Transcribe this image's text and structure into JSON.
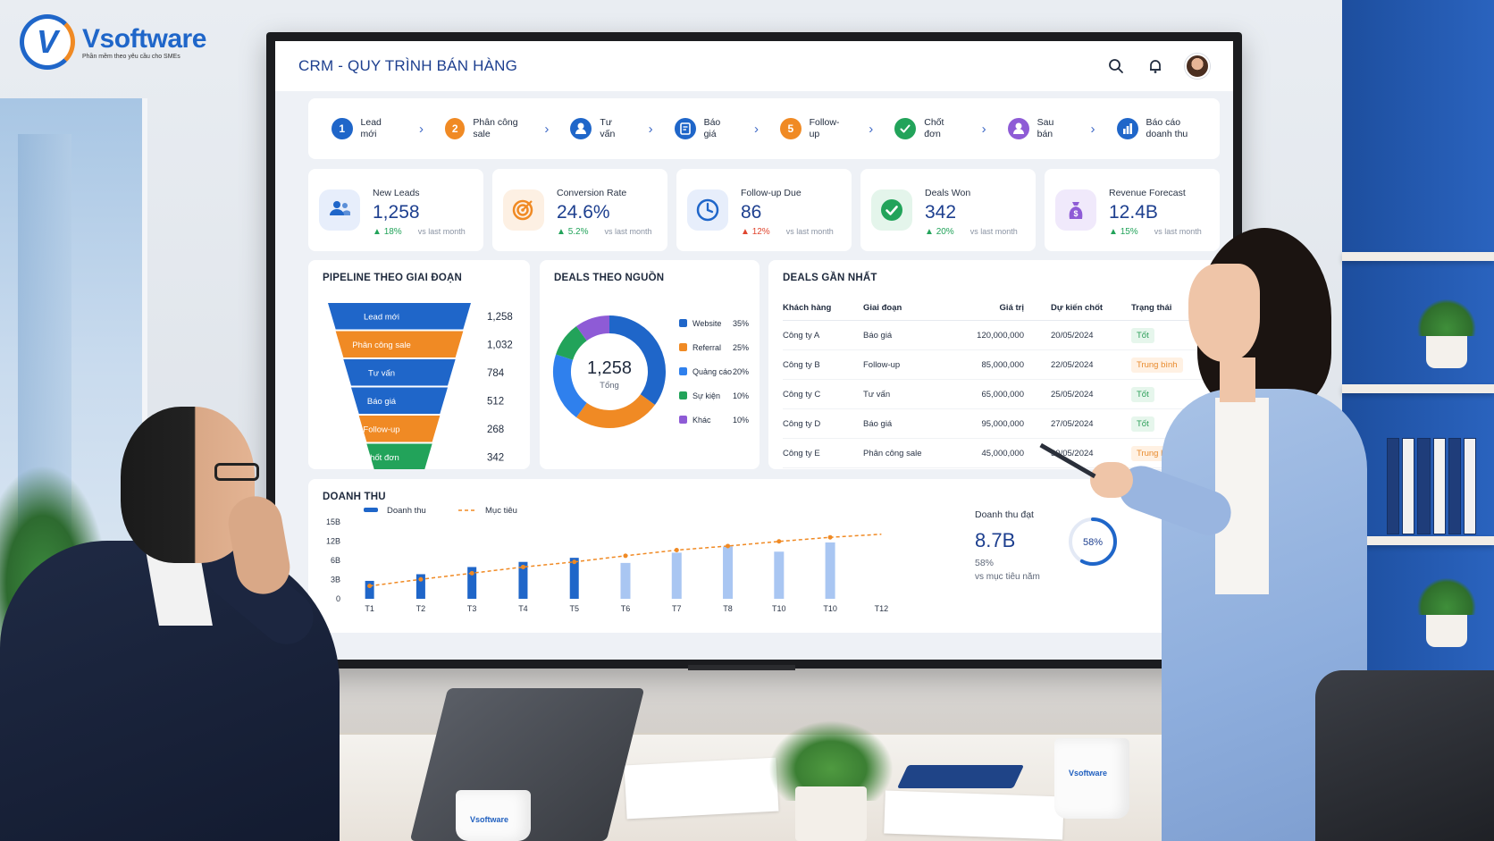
{
  "brand": {
    "name": "Vsoftware",
    "tagline": "Phần mềm theo yêu cầu cho SMEs",
    "mug_logo": "Vsoftware"
  },
  "header": {
    "title": "CRM  - QUY TRÌNH BÁN HÀNG",
    "icons": [
      "search-icon",
      "bell-icon",
      "user-avatar"
    ]
  },
  "steps": [
    {
      "badge": "1",
      "label": "Lead mới",
      "color": "#1f66c9",
      "icon": "number"
    },
    {
      "badge": "2",
      "label": "Phân công sale",
      "color": "#f08a24",
      "icon": "number"
    },
    {
      "badge": "",
      "label": "Tư vấn",
      "color": "#1f66c9",
      "icon": "person-icon"
    },
    {
      "badge": "",
      "label": "Báo giá",
      "color": "#1f66c9",
      "icon": "quote-icon"
    },
    {
      "badge": "5",
      "label": "Follow-up",
      "color": "#f08a24",
      "icon": "number"
    },
    {
      "badge": "",
      "label": "Chốt đơn",
      "color": "#22a35a",
      "icon": "check-icon"
    },
    {
      "badge": "",
      "label": "Sau bán",
      "color": "#8e5bd6",
      "icon": "person-icon"
    },
    {
      "badge": "",
      "label": "Báo cáo doanh thu",
      "color": "#1f66c9",
      "icon": "bar-chart-icon"
    }
  ],
  "kpis": [
    {
      "label": "New Leads",
      "value": "1,258",
      "delta": "18%",
      "direction": "up",
      "note": "vs last month",
      "icon": "users-icon",
      "color": "#1f66c9",
      "bg": "#e7eefb"
    },
    {
      "label": "Conversion Rate",
      "value": "24.6%",
      "delta": "5.2%",
      "direction": "up",
      "note": "vs last month",
      "icon": "target-icon",
      "color": "#f08a24",
      "bg": "#fdf0e3"
    },
    {
      "label": "Follow-up Due",
      "value": "86",
      "delta": "12%",
      "direction": "down",
      "note": "vs last month",
      "icon": "clock-icon",
      "color": "#1f66c9",
      "bg": "#e7eefb"
    },
    {
      "label": "Deals Won",
      "value": "342",
      "delta": "20%",
      "direction": "up",
      "note": "vs last month",
      "icon": "check-circle-icon",
      "color": "#22a35a",
      "bg": "#e4f5eb"
    },
    {
      "label": "Revenue Forecast",
      "value": "12.4B",
      "delta": "15%",
      "direction": "up",
      "note": "vs last month",
      "icon": "money-bag-icon",
      "color": "#8e5bd6",
      "bg": "#f0e9fb"
    }
  ],
  "pipeline": {
    "title": "PIPELINE THEO GIAI ĐOẠN",
    "chart_data": {
      "type": "bar",
      "categories": [
        "Lead mới",
        "Phân công sale",
        "Tư vấn",
        "Báo giá",
        "Follow-up",
        "Chốt đơn"
      ],
      "values": [
        1258,
        1032,
        784,
        512,
        268,
        342
      ],
      "value_labels": [
        "1,258",
        "1,032",
        "784",
        "512",
        "268",
        "342"
      ],
      "colors": [
        "#1f66c9",
        "#f08a24",
        "#1f66c9",
        "#1f66c9",
        "#f08a24",
        "#22a35a"
      ],
      "style": "funnel"
    }
  },
  "deals_source": {
    "title": "DEALS THEO NGUỒN",
    "center_value": "1,258",
    "center_label": "Tổng",
    "chart_data": {
      "type": "pie",
      "style": "donut",
      "categories": [
        "Website",
        "Referral",
        "Quảng cáo",
        "Sự kiện",
        "Khác"
      ],
      "values": [
        35,
        25,
        20,
        10,
        10
      ],
      "labels": [
        "35%",
        "25%",
        "20%",
        "10%",
        "10%"
      ],
      "colors": [
        "#1f66c9",
        "#f08a24",
        "#2f80ed",
        "#22a35a",
        "#8e5bd6"
      ],
      "legend_position": "right"
    }
  },
  "recent_deals": {
    "title": "DEALS GẦN NHẤT",
    "columns": [
      "Khách hàng",
      "Giai đoạn",
      "Giá trị",
      "Dự kiến chốt",
      "Trạng thái"
    ],
    "rows": [
      {
        "customer": "Công ty A",
        "stage": "Báo giá",
        "value": "120,000,000",
        "date": "20/05/2024",
        "status": "Tốt",
        "status_type": "good"
      },
      {
        "customer": "Công ty B",
        "stage": "Follow-up",
        "value": "85,000,000",
        "date": "22/05/2024",
        "status": "Trung bình",
        "status_type": "mid"
      },
      {
        "customer": "Công ty C",
        "stage": "Tư vấn",
        "value": "65,000,000",
        "date": "25/05/2024",
        "status": "Tốt",
        "status_type": "good"
      },
      {
        "customer": "Công ty D",
        "stage": "Báo giá",
        "value": "95,000,000",
        "date": "27/05/2024",
        "status": "Tốt",
        "status_type": "good"
      },
      {
        "customer": "Công ty E",
        "stage": "Phân công sale",
        "value": "45,000,000",
        "date": "30/05/2024",
        "status": "Trung bình",
        "status_type": "mid"
      }
    ]
  },
  "revenue": {
    "title": "DOANH THU",
    "chart_data": {
      "type": "bar",
      "categories": [
        "T1",
        "T2",
        "T3",
        "T4",
        "T5",
        "T6",
        "T7",
        "T8",
        "T10",
        "T10",
        "T12"
      ],
      "series": [
        {
          "name": "Doanh thu",
          "values": [
            3.5,
            4.8,
            6.2,
            7.2,
            8.0,
            7.0,
            9.0,
            10.2,
            9.2,
            11.0,
            null
          ],
          "highlight_until_index": 4
        },
        {
          "name": "Mục tiêu",
          "values": [
            2.5,
            3.8,
            5.0,
            6.2,
            7.2,
            8.4,
            9.5,
            10.3,
            11.2,
            12.0,
            12.6
          ],
          "style": "dashed-line"
        }
      ],
      "y_ticks": [
        "0",
        "3B",
        "6B",
        "12B",
        "15B"
      ],
      "ylim": [
        0,
        15
      ],
      "colors": {
        "actual": "#1f66c9",
        "projected": "#a9c6f2",
        "target": "#f08a24"
      },
      "legend_position": "top-left"
    },
    "summary": {
      "title": "Doanh thu đạt",
      "value": "8.7B",
      "percent": "58%",
      "percent_value": 58,
      "note": "vs mục tiêu năm"
    }
  }
}
